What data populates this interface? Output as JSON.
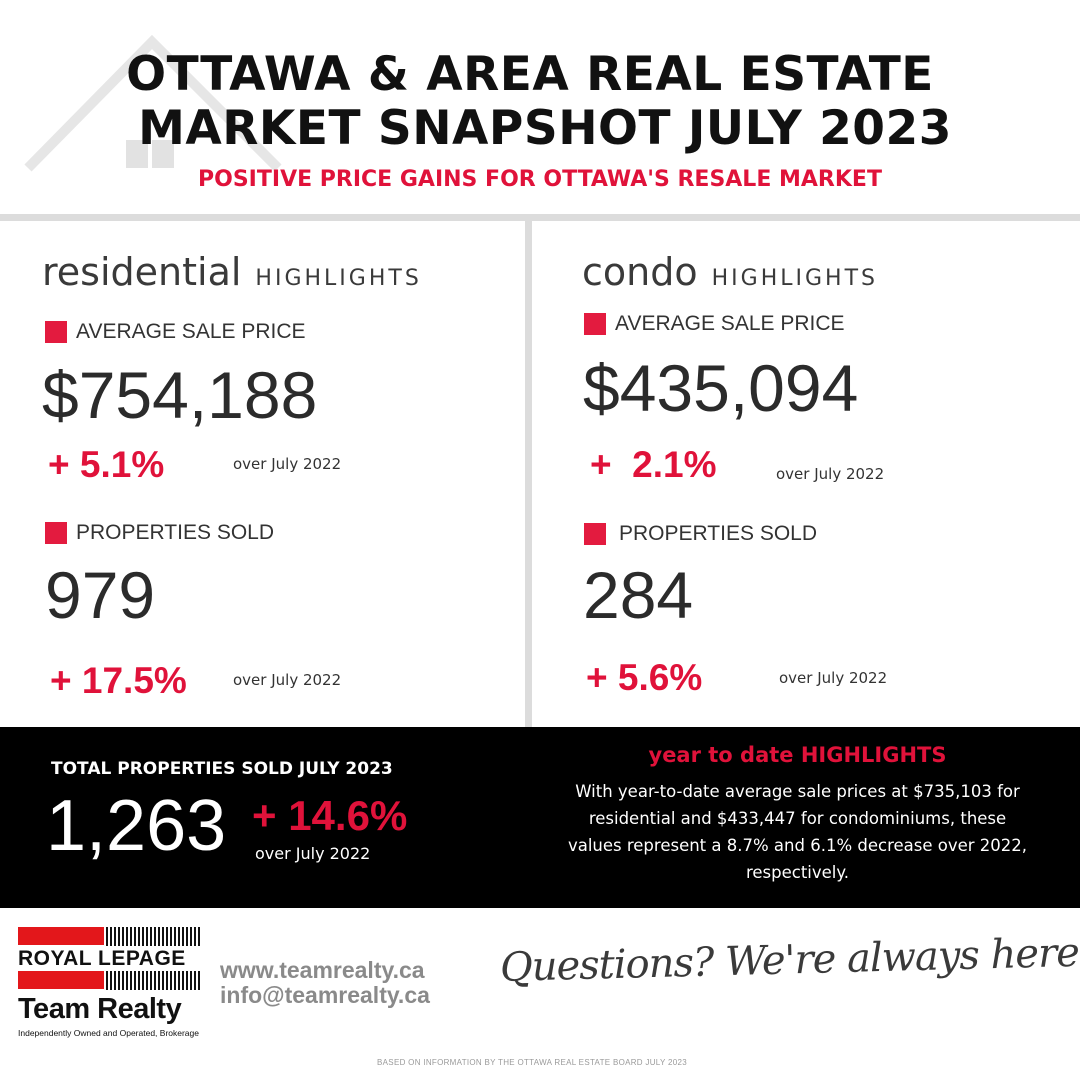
{
  "header": {
    "title_line1": "OTTAWA & AREA REAL ESTATE",
    "title_line2": "MARKET SNAPSHOT JULY 2023",
    "subtitle": "POSITIVE PRICE GAINS FOR OTTAWA'S RESALE MARKET"
  },
  "residential": {
    "word": "residential",
    "highlights": "HIGHLIGHTS",
    "avg_label": "AVERAGE SALE PRICE",
    "avg_value": "$754,188",
    "avg_change": "+ 5.1%",
    "avg_over": "over July 2022",
    "sold_label": "PROPERTIES SOLD",
    "sold_value": "979",
    "sold_change": "+ 17.5%",
    "sold_over": "over July 2022"
  },
  "condo": {
    "word": "condo",
    "highlights": "HIGHLIGHTS",
    "avg_label": "AVERAGE SALE PRICE",
    "avg_value": "$435,094",
    "avg_change": "+  2.1%",
    "avg_over": "over July 2022",
    "sold_label": "PROPERTIES SOLD",
    "sold_value": "284",
    "sold_change": "+ 5.6%",
    "sold_over": "over July 2022"
  },
  "total": {
    "label": "TOTAL PROPERTIES SOLD JULY 2023",
    "value": "1,263",
    "change": "+ 14.6%",
    "over": "over July 2022"
  },
  "ytd": {
    "title": "year to date HIGHLIGHTS",
    "body": "With year-to-date average sale prices at $735,103 for residential and $433,447 for condominiums, these values represent a 8.7% and 6.1% decrease over 2022, respectively."
  },
  "brand": {
    "name_line1": "ROYAL LEPAGE",
    "name_line2": "Team Realty",
    "tagline_small": "Independently Owned and Operated, Brokerage",
    "website": "www.teamrealty.ca",
    "email": "info@teamrealty.ca",
    "cta": "Questions? We're always here to help"
  },
  "footnote": "BASED ON INFORMATION BY THE OTTAWA REAL ESTATE BOARD JULY 2023",
  "colors": {
    "accent": "#e0123a",
    "dark": "#000000",
    "divider": "#dcdcdc"
  },
  "icons": [
    "house-outline-icon"
  ]
}
